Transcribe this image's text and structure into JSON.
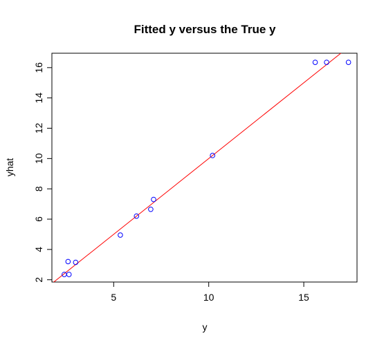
{
  "chart_data": {
    "type": "scatter",
    "title": "Fitted y versus the True y",
    "xlabel": "y",
    "ylabel": "yhat",
    "xlim": [
      1.75,
      17.8
    ],
    "ylim": [
      1.85,
      16.95
    ],
    "xticks": [
      5,
      10,
      15
    ],
    "yticks": [
      2,
      4,
      6,
      8,
      10,
      12,
      14,
      16
    ],
    "grid": false,
    "legend": "none",
    "points": [
      {
        "x": 2.4,
        "y": 2.35
      },
      {
        "x": 2.65,
        "y": 2.35
      },
      {
        "x": 2.6,
        "y": 3.2
      },
      {
        "x": 3.0,
        "y": 3.15
      },
      {
        "x": 5.35,
        "y": 4.95
      },
      {
        "x": 6.2,
        "y": 6.2
      },
      {
        "x": 6.95,
        "y": 6.65
      },
      {
        "x": 7.1,
        "y": 7.3
      },
      {
        "x": 10.2,
        "y": 10.2
      },
      {
        "x": 15.6,
        "y": 16.35
      },
      {
        "x": 16.2,
        "y": 16.35
      },
      {
        "x": 17.35,
        "y": 16.35
      }
    ],
    "reference_line": {
      "slope": 1,
      "intercept": 0,
      "color": "#ff0000"
    },
    "point_color": "#0000ff"
  }
}
